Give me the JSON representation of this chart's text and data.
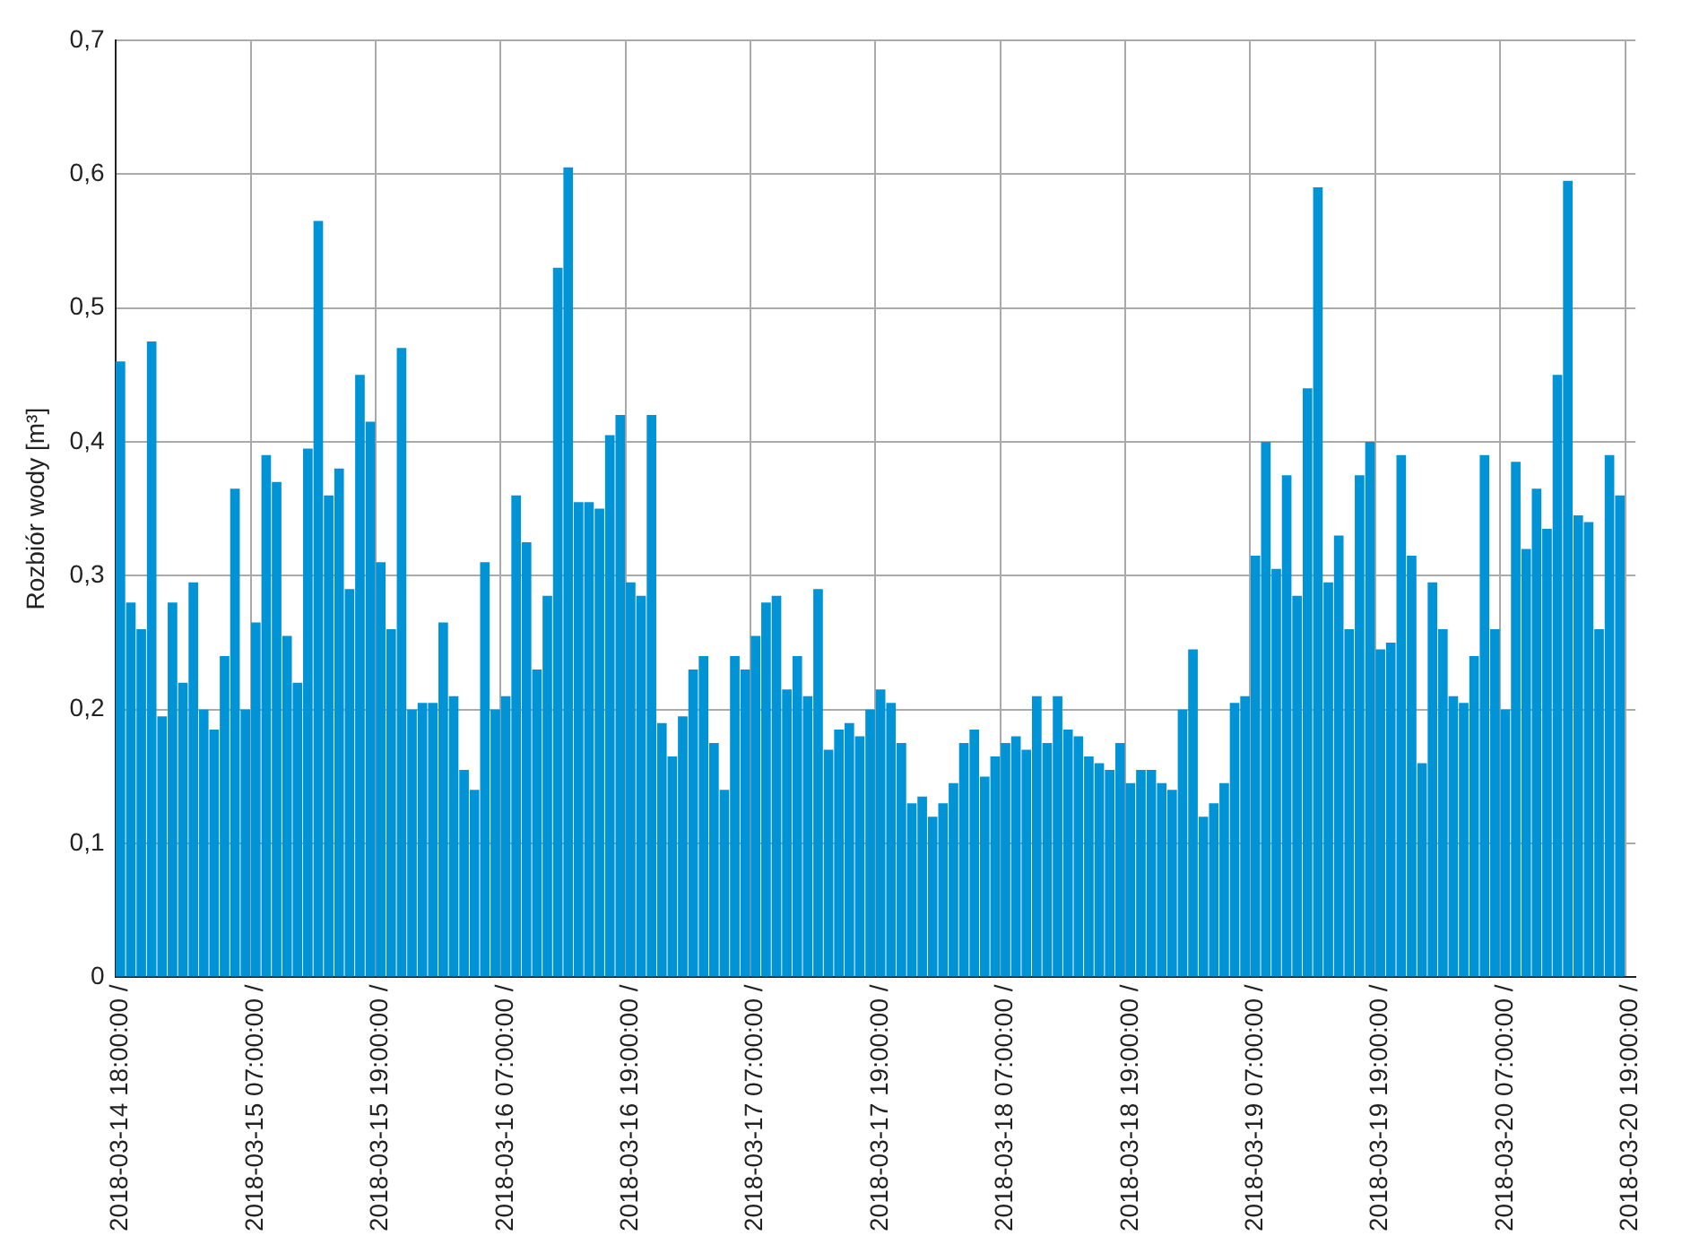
{
  "chart_data": {
    "type": "bar",
    "ylabel": "Rozbiór wody [m³]",
    "categories": [
      "2018-03-14 18:00:00 /",
      null,
      null,
      null,
      null,
      null,
      null,
      null,
      null,
      null,
      null,
      null,
      null,
      "2018-03-15 07:00:00 /",
      null,
      null,
      null,
      null,
      null,
      null,
      null,
      null,
      null,
      null,
      null,
      "2018-03-15 19:00:00 /",
      null,
      null,
      null,
      null,
      null,
      null,
      null,
      null,
      null,
      null,
      null,
      "2018-03-16 07:00:00 /",
      null,
      null,
      null,
      null,
      null,
      null,
      null,
      null,
      null,
      null,
      null,
      "2018-03-16 19:00:00 /",
      null,
      null,
      null,
      null,
      null,
      null,
      null,
      null,
      null,
      null,
      null,
      "2018-03-17 07:00:00 /",
      null,
      null,
      null,
      null,
      null,
      null,
      null,
      null,
      null,
      null,
      null,
      "2018-03-17 19:00:00 /",
      null,
      null,
      null,
      null,
      null,
      null,
      null,
      null,
      null,
      null,
      null,
      "2018-03-18 07:00:00 /",
      null,
      null,
      null,
      null,
      null,
      null,
      null,
      null,
      null,
      null,
      null,
      "2018-03-18 19:00:00 /",
      null,
      null,
      null,
      null,
      null,
      null,
      null,
      null,
      null,
      null,
      null,
      "2018-03-19 07:00:00 /",
      null,
      null,
      null,
      null,
      null,
      null,
      null,
      null,
      null,
      null,
      null,
      "2018-03-19 19:00:00 /",
      null,
      null,
      null,
      null,
      null,
      null,
      null,
      null,
      null,
      null,
      null,
      "2018-03-20 07:00:00 /",
      null,
      null,
      null,
      null,
      null,
      null,
      null,
      null,
      null,
      null,
      null,
      "2018-03-20 19:00:00 /"
    ],
    "values": [
      0.46,
      0.28,
      0.26,
      0.475,
      0.195,
      0.28,
      0.22,
      0.295,
      0.2,
      0.185,
      0.24,
      0.365,
      0.2,
      0.265,
      0.39,
      0.37,
      0.255,
      0.22,
      0.395,
      0.565,
      0.36,
      0.38,
      0.29,
      0.45,
      0.415,
      0.31,
      0.26,
      0.47,
      0.2,
      0.205,
      0.205,
      0.265,
      0.21,
      0.155,
      0.14,
      0.31,
      0.2,
      0.21,
      0.36,
      0.325,
      0.23,
      0.285,
      0.53,
      0.605,
      0.355,
      0.355,
      0.35,
      0.405,
      0.42,
      0.295,
      0.285,
      0.42,
      0.19,
      0.165,
      0.195,
      0.23,
      0.24,
      0.175,
      0.14,
      0.24,
      0.23,
      0.255,
      0.28,
      0.285,
      0.215,
      0.24,
      0.21,
      0.29,
      0.17,
      0.185,
      0.19,
      0.18,
      0.2,
      0.215,
      0.205,
      0.175,
      0.13,
      0.135,
      0.12,
      0.13,
      0.145,
      0.175,
      0.185,
      0.15,
      0.165,
      0.175,
      0.18,
      0.17,
      0.21,
      0.175,
      0.21,
      0.185,
      0.18,
      0.165,
      0.16,
      0.155,
      0.175,
      0.145,
      0.155,
      0.155,
      0.145,
      0.14,
      0.2,
      0.245,
      0.12,
      0.13,
      0.145,
      0.205,
      0.21,
      0.315,
      0.4,
      0.305,
      0.375,
      0.285,
      0.44,
      0.59,
      0.295,
      0.33,
      0.26,
      0.375,
      0.4,
      0.245,
      0.25,
      0.39,
      0.315,
      0.16,
      0.295,
      0.26,
      0.21,
      0.205,
      0.24,
      0.39,
      0.26,
      0.2,
      0.385,
      0.32,
      0.365,
      0.335,
      0.45,
      0.595,
      0.345,
      0.34,
      0.26,
      0.39,
      0.36,
      null
    ],
    "color": "#0093d6",
    "ylim": [
      0,
      0.7
    ],
    "yticks": [
      0,
      {
        "value": 0.1,
        "label": "0,1"
      },
      {
        "value": 0.2,
        "label": "0,2"
      },
      {
        "value": 0.3,
        "label": "0,3"
      },
      {
        "value": 0.4,
        "label": "0,4"
      },
      {
        "value": 0.5,
        "label": "0,5"
      },
      {
        "value": 0.6,
        "label": "0,6"
      },
      {
        "value": 0.7,
        "label": "0,7"
      }
    ],
    "grid": true
  }
}
